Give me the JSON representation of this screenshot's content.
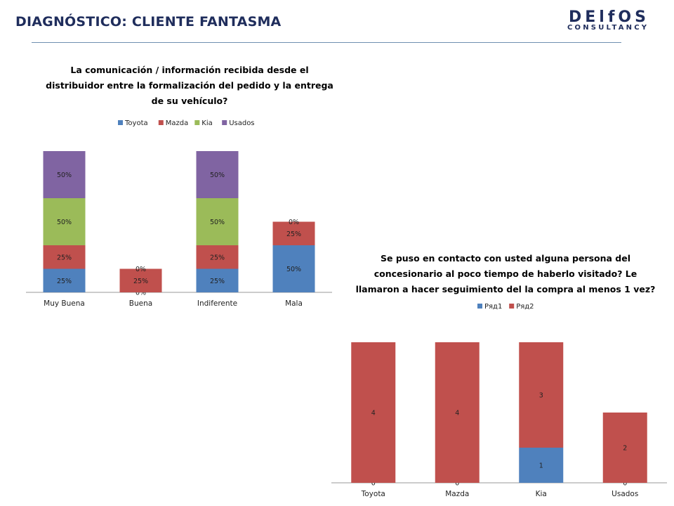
{
  "header": {
    "title": "DIAGNÓSTICO: CLIENTE FANTASMA",
    "logo_main": "DElfOS",
    "logo_sub": "CONSULTANCY",
    "accent_color": "#1f2d5c"
  },
  "chart_data": [
    {
      "type": "bar",
      "stacked": true,
      "title_lines": [
        "La comunicación / información recibida desde el",
        "distribuidor entre la formalización del pedido y la entrega",
        "de su vehículo?"
      ],
      "categories": [
        "Muy Buena",
        "Buena",
        "Indiferente",
        "Mala"
      ],
      "legend_position": "top",
      "series": [
        {
          "name": "Toyota",
          "color": "#4f81bd",
          "values": [
            25,
            0,
            25,
            50
          ],
          "labels": [
            "25%",
            "0%",
            "25%",
            "50%"
          ]
        },
        {
          "name": "Mazda",
          "color": "#c0504d",
          "values": [
            25,
            25,
            25,
            25
          ],
          "labels": [
            "25%",
            "25%",
            "25%",
            "25%"
          ]
        },
        {
          "name": "Kia",
          "color": "#9bbb59",
          "values": [
            50,
            0,
            50,
            0
          ],
          "labels": [
            "50%",
            "0%",
            "50%",
            "0%"
          ]
        },
        {
          "name": "Usados",
          "color": "#8064a2",
          "values": [
            50,
            0,
            50,
            0
          ],
          "labels": [
            "50%",
            "",
            "50%",
            ""
          ]
        }
      ],
      "ymax": 150,
      "grid": false
    },
    {
      "type": "bar",
      "stacked": true,
      "title_lines": [
        "Se puso en contacto con usted alguna persona del",
        "concesionario al poco tiempo de haberlo visitado? Le",
        "llamaron a hacer seguimiento del la compra al menos 1 vez?"
      ],
      "categories": [
        "Toyota",
        "Mazda",
        "Kia",
        "Usados"
      ],
      "legend_position": "top",
      "series": [
        {
          "name": "Ряд1",
          "color": "#4f81bd",
          "values": [
            0,
            0,
            1,
            0
          ],
          "labels": [
            "0",
            "0",
            "1",
            "0"
          ]
        },
        {
          "name": "Ряд2",
          "color": "#c0504d",
          "values": [
            4,
            4,
            3,
            2
          ],
          "labels": [
            "4",
            "4",
            "3",
            "2"
          ]
        }
      ],
      "ymax": 4,
      "grid": false
    }
  ]
}
